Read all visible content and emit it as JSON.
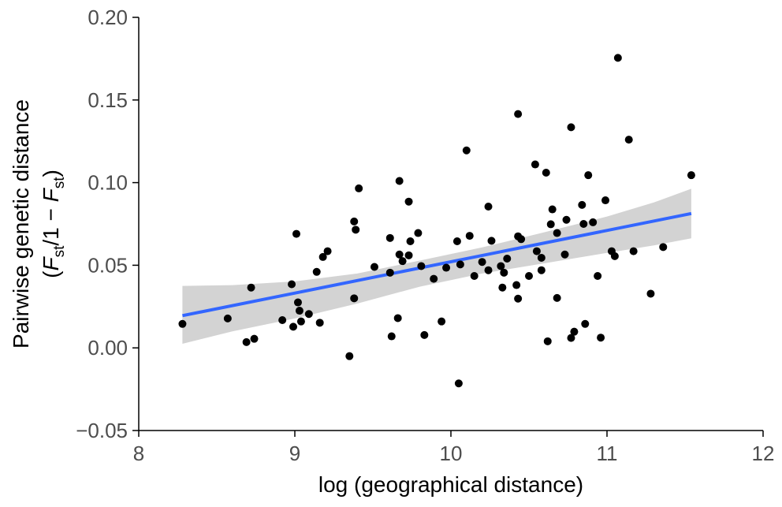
{
  "chart_data": {
    "type": "scatter",
    "title": "",
    "xlabel": "log (geographical distance)",
    "ylabel": {
      "line1": "Pairwise genetic distance",
      "line2": {
        "open": "(",
        "F1": "F",
        "sub1": "st",
        "middle": "/1 − ",
        "F2": "F",
        "sub2": "st",
        "close": ")"
      }
    },
    "xlim": [
      8,
      12
    ],
    "ylim": [
      -0.05,
      0.2
    ],
    "xticks": [
      "8",
      "9",
      "10",
      "11",
      "12"
    ],
    "yticks": [
      "−0.05",
      "0.00",
      "0.05",
      "0.10",
      "0.15",
      "0.20"
    ],
    "xtick_values": [
      8,
      9,
      10,
      11,
      12
    ],
    "ytick_values": [
      -0.05,
      0.0,
      0.05,
      0.1,
      0.15,
      0.2
    ],
    "grid": false,
    "legend": "none",
    "point_color": "#000000",
    "fit_color": "#3366ff",
    "band_color": "#d3d3d3",
    "points": [
      [
        8.28,
        0.0145
      ],
      [
        8.57,
        0.0178
      ],
      [
        8.69,
        0.0035
      ],
      [
        8.72,
        0.0365
      ],
      [
        8.74,
        0.0055
      ],
      [
        8.92,
        0.0168
      ],
      [
        8.98,
        0.0385
      ],
      [
        8.99,
        0.0128
      ],
      [
        9.01,
        0.069
      ],
      [
        9.02,
        0.0275
      ],
      [
        9.03,
        0.0225
      ],
      [
        9.04,
        0.016
      ],
      [
        9.09,
        0.0205
      ],
      [
        9.14,
        0.046
      ],
      [
        9.16,
        0.0152
      ],
      [
        9.18,
        0.055
      ],
      [
        9.21,
        0.0585
      ],
      [
        9.35,
        -0.005
      ],
      [
        9.38,
        0.0765
      ],
      [
        9.38,
        0.03
      ],
      [
        9.39,
        0.0715
      ],
      [
        9.41,
        0.0965
      ],
      [
        9.51,
        0.049
      ],
      [
        9.61,
        0.0665
      ],
      [
        9.61,
        0.0455
      ],
      [
        9.62,
        0.007
      ],
      [
        9.66,
        0.018
      ],
      [
        9.67,
        0.101
      ],
      [
        9.67,
        0.0565
      ],
      [
        9.69,
        0.0525
      ],
      [
        9.73,
        0.0885
      ],
      [
        9.73,
        0.056
      ],
      [
        9.74,
        0.0645
      ],
      [
        9.79,
        0.0695
      ],
      [
        9.81,
        0.0495
      ],
      [
        9.83,
        0.0078
      ],
      [
        9.89,
        0.0418
      ],
      [
        9.94,
        0.016
      ],
      [
        9.97,
        0.0485
      ],
      [
        10.04,
        0.0645
      ],
      [
        10.05,
        -0.0215
      ],
      [
        10.06,
        0.0505
      ],
      [
        10.1,
        0.1195
      ],
      [
        10.12,
        0.0678
      ],
      [
        10.15,
        0.0435
      ],
      [
        10.2,
        0.052
      ],
      [
        10.24,
        0.0855
      ],
      [
        10.24,
        0.047
      ],
      [
        10.26,
        0.0648
      ],
      [
        10.32,
        0.0495
      ],
      [
        10.33,
        0.0365
      ],
      [
        10.34,
        0.0455
      ],
      [
        10.36,
        0.054
      ],
      [
        10.42,
        0.038
      ],
      [
        10.43,
        0.1415
      ],
      [
        10.43,
        0.0675
      ],
      [
        10.43,
        0.0298
      ],
      [
        10.45,
        0.0658
      ],
      [
        10.5,
        0.0435
      ],
      [
        10.54,
        0.111
      ],
      [
        10.55,
        0.0585
      ],
      [
        10.58,
        0.047
      ],
      [
        10.58,
        0.0545
      ],
      [
        10.61,
        0.106
      ],
      [
        10.62,
        0.004
      ],
      [
        10.64,
        0.0748
      ],
      [
        10.65,
        0.0838
      ],
      [
        10.68,
        0.0695
      ],
      [
        10.68,
        0.0302
      ],
      [
        10.73,
        0.0565
      ],
      [
        10.74,
        0.0775
      ],
      [
        10.77,
        0.1335
      ],
      [
        10.77,
        0.006
      ],
      [
        10.79,
        0.0098
      ],
      [
        10.84,
        0.0865
      ],
      [
        10.85,
        0.075
      ],
      [
        10.86,
        0.0145
      ],
      [
        10.88,
        0.1045
      ],
      [
        10.91,
        0.076
      ],
      [
        10.94,
        0.0435
      ],
      [
        10.96,
        0.0062
      ],
      [
        10.99,
        0.0893
      ],
      [
        11.03,
        0.0585
      ],
      [
        11.05,
        0.0555
      ],
      [
        11.07,
        0.1755
      ],
      [
        11.14,
        0.126
      ],
      [
        11.17,
        0.0585
      ],
      [
        11.28,
        0.0328
      ],
      [
        11.36,
        0.061
      ],
      [
        11.54,
        0.1045
      ]
    ],
    "fit_line": [
      [
        8.28,
        0.0195
      ],
      [
        11.54,
        0.0813
      ]
    ],
    "confidence_band": {
      "x": [
        8.28,
        8.6,
        9.0,
        9.4,
        9.8,
        10.2,
        10.6,
        11.0,
        11.3,
        11.54
      ],
      "upper": [
        0.0375,
        0.038,
        0.0402,
        0.045,
        0.0528,
        0.0608,
        0.07,
        0.0795,
        0.088,
        0.0963
      ],
      "lower": [
        0.0025,
        0.01,
        0.0178,
        0.0268,
        0.037,
        0.045,
        0.0512,
        0.0575,
        0.062,
        0.0663
      ]
    }
  }
}
